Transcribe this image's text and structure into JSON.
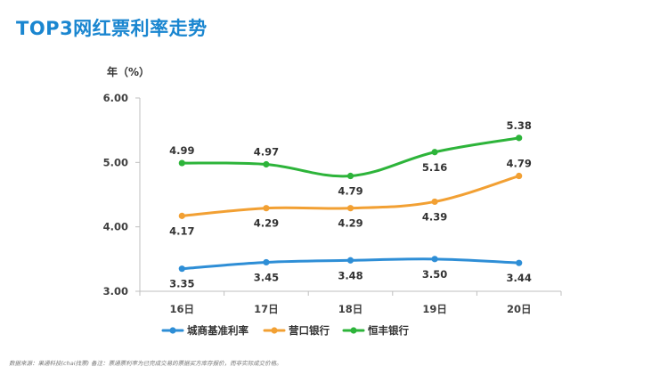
{
  "title": "TOP3网红票利率走势",
  "unit_label": "年（%）",
  "footnote": "数据来源：果通科技(chai找票) 备注：票通票利率为已完成交易的票据买方库存报价，而非实际成交价格。",
  "colors": {
    "title": "#1a86d0",
    "city_bank": "#2e8ed6",
    "yingkou": "#f2a033",
    "hengfeng": "#2db43a",
    "axis": "#bfbfbf"
  },
  "chart_data": {
    "type": "line",
    "title": "TOP3网红票利率走势",
    "ylabel": "年（%）",
    "xlabel": "",
    "categories": [
      "16日",
      "17日",
      "18日",
      "19日",
      "20日"
    ],
    "ylim": [
      3.0,
      6.0
    ],
    "yticks": [
      "3.00",
      "4.00",
      "5.00",
      "6.00"
    ],
    "grid": false,
    "legend": "bottom",
    "series": [
      {
        "name": "城商基准利率",
        "color": "#2e8ed6",
        "values": [
          3.35,
          3.45,
          3.48,
          3.5,
          3.44
        ],
        "labels": [
          "3.35",
          "3.45",
          "3.48",
          "3.50",
          "3.44"
        ],
        "label_pos": [
          "below",
          "below",
          "below",
          "below",
          "below"
        ]
      },
      {
        "name": "营口银行",
        "color": "#f2a033",
        "values": [
          4.17,
          4.29,
          4.29,
          4.39,
          4.79
        ],
        "labels": [
          "4.17",
          "4.29",
          "4.29",
          "4.39",
          "4.79"
        ],
        "label_pos": [
          "below",
          "below",
          "below",
          "below",
          "above"
        ]
      },
      {
        "name": "恒丰银行",
        "color": "#2db43a",
        "values": [
          4.99,
          4.97,
          4.79,
          5.16,
          5.38
        ],
        "labels": [
          "4.99",
          "4.97",
          "4.79",
          "5.16",
          "5.38"
        ],
        "label_pos": [
          "above",
          "above",
          "below",
          "below",
          "above"
        ]
      }
    ]
  }
}
